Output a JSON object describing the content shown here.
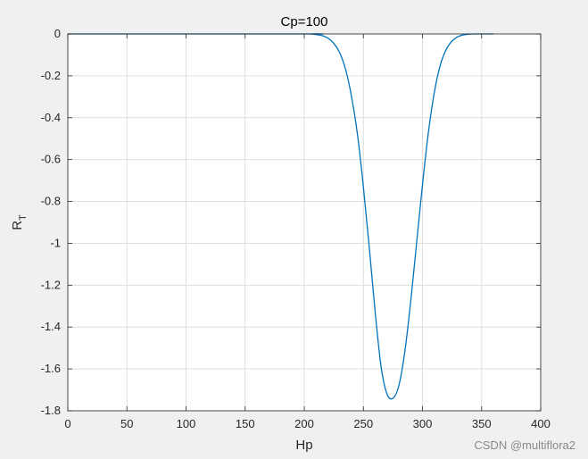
{
  "chart_data": {
    "type": "line",
    "title": "Cp=100",
    "xlabel": "Hp",
    "ylabel_main": "R",
    "ylabel_sub": "T",
    "xlim": [
      0,
      400
    ],
    "ylim": [
      -1.8,
      0
    ],
    "xticks": [
      0,
      50,
      100,
      150,
      200,
      250,
      300,
      350,
      400
    ],
    "yticks": [
      0,
      -0.2,
      -0.4,
      -0.6,
      -0.8,
      -1,
      -1.2,
      -1.4,
      -1.6,
      -1.8
    ],
    "ytick_labels": [
      "0",
      "-0.2",
      "-0.4",
      "-0.6",
      "-0.8",
      "-1",
      "-1.2",
      "-1.4",
      "-1.6",
      "-1.8"
    ],
    "grid": true,
    "series": [
      {
        "color": "#0072bd",
        "x": [
          0,
          200,
          205,
          210,
          215,
          220,
          225,
          230,
          235,
          240,
          245,
          250,
          255,
          260,
          265,
          270,
          275,
          280,
          285,
          290,
          295,
          300,
          305,
          310,
          315,
          320,
          325,
          330,
          335,
          340,
          345,
          350,
          355,
          360
        ],
        "y": [
          0,
          0,
          0,
          -0.003,
          -0.008,
          -0.02,
          -0.045,
          -0.09,
          -0.17,
          -0.3,
          -0.48,
          -0.73,
          -1.02,
          -1.33,
          -1.59,
          -1.72,
          -1.74,
          -1.68,
          -1.52,
          -1.28,
          -1.0,
          -0.72,
          -0.47,
          -0.28,
          -0.15,
          -0.075,
          -0.034,
          -0.013,
          -0.004,
          -0.001,
          0,
          0,
          0,
          0
        ]
      }
    ]
  },
  "watermark": "CSDN @multiflora2"
}
